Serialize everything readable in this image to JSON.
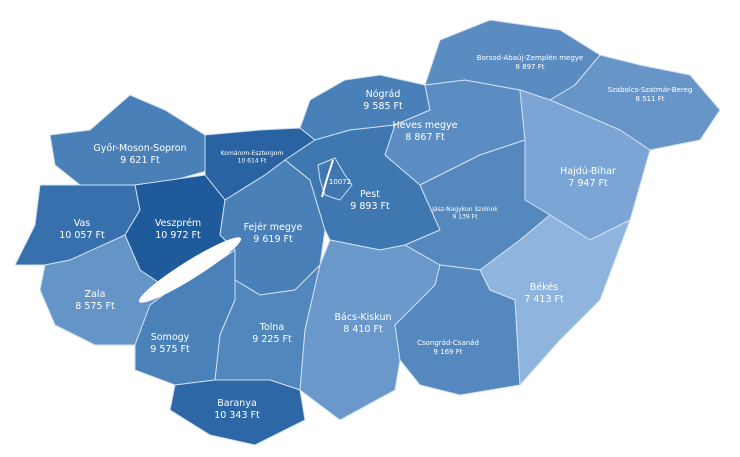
{
  "map": {
    "currency": "Ft",
    "counties": [
      {
        "id": "gyor",
        "name": "Győr-Moson-Sopron",
        "value": "9 621 Ft",
        "color": "#4a80b8"
      },
      {
        "id": "komarom",
        "name": "Komárom-Esztergom",
        "value": "10 614 Ft",
        "color": "#2a63a1"
      },
      {
        "id": "vas",
        "name": "Vas",
        "value": "10 057 Ft",
        "color": "#3870ad"
      },
      {
        "id": "veszprem",
        "name": "Veszprém",
        "value": "10 972 Ft",
        "color": "#1f5a9a"
      },
      {
        "id": "zala",
        "name": "Zala",
        "value": "8 575 Ft",
        "color": "#6594c7"
      },
      {
        "id": "somogy",
        "name": "Somogy",
        "value": "9 575 Ft",
        "color": "#4b81b9"
      },
      {
        "id": "fejer",
        "name": "Fejér megye",
        "value": "9 619 Ft",
        "color": "#4a80b8"
      },
      {
        "id": "tolna",
        "name": "Tolna",
        "value": "9 225 Ft",
        "color": "#5287bd"
      },
      {
        "id": "baranya",
        "name": "Baranya",
        "value": "10 343 Ft",
        "color": "#2e67a5"
      },
      {
        "id": "nograd",
        "name": "Nógrád",
        "value": "9 585 Ft",
        "color": "#4a80b8"
      },
      {
        "id": "pest",
        "name": "Pest",
        "value": "9 893 Ft",
        "color": "#3f77b1"
      },
      {
        "id": "bacs",
        "name": "Bács-Kiskun",
        "value": "8 410 Ft",
        "color": "#6a98ca"
      },
      {
        "id": "heves",
        "name": "Heves megye",
        "value": "8 867 Ft",
        "color": "#5c8dc2"
      },
      {
        "id": "borsod",
        "name": "Borsod-Abaúj-Zemplén megye",
        "value": "8 897 Ft",
        "color": "#5b8cc1"
      },
      {
        "id": "szabolcs",
        "name": "Szabolcs-Szatmár-Bereg",
        "value": "8 511 Ft",
        "color": "#6795c8"
      },
      {
        "id": "hajdu",
        "name": "Hajdú-Bihar",
        "value": "7 947 Ft",
        "color": "#7ba5d4"
      },
      {
        "id": "jasz",
        "name": "Jász-Nagykun Szolnok",
        "value": "9 139 Ft",
        "color": "#5589be"
      },
      {
        "id": "csongrad",
        "name": "Csongrád-Csanád",
        "value": "9 169 Ft",
        "color": "#5488be"
      },
      {
        "id": "bekes",
        "name": "Békés",
        "value": "7 413 Ft",
        "color": "#8fb5df"
      }
    ],
    "budapest": {
      "value": "10072",
      "color": "#3f77b1"
    },
    "lake_color": "#ffffff"
  }
}
